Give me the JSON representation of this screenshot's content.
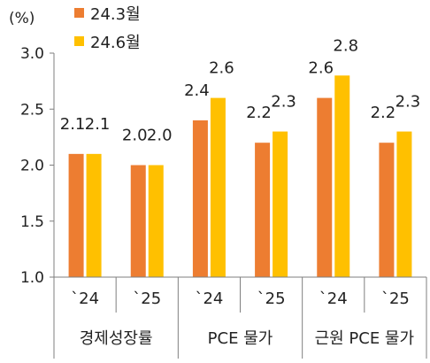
{
  "chart_data": {
    "type": "bar",
    "unit_label": "(%)",
    "ylim": [
      1.0,
      3.0
    ],
    "yticks": [
      "1.0",
      "1.5",
      "2.0",
      "2.5",
      "3.0"
    ],
    "ytick_values": [
      1.0,
      1.5,
      2.0,
      2.5,
      3.0
    ],
    "categories": [
      "`24",
      "`25",
      "`24",
      "`25",
      "`24",
      "`25"
    ],
    "groups": [
      "경제성장률",
      "PCE 물가",
      "근원 PCE 물가"
    ],
    "series": [
      {
        "name": "24.3월",
        "color": "#ED7D31",
        "values": [
          2.1,
          2.0,
          2.4,
          2.2,
          2.6,
          2.2
        ],
        "labels": [
          "2.1",
          "2.0",
          "2.4",
          "2.2",
          "2.6",
          "2.2"
        ]
      },
      {
        "name": "24.6월",
        "color": "#FFC000",
        "values": [
          2.1,
          2.0,
          2.6,
          2.3,
          2.8,
          2.3
        ],
        "labels": [
          "2.1",
          "2.0",
          "2.6",
          "2.3",
          "2.8",
          "2.3"
        ]
      }
    ],
    "legend_position": "top-left",
    "grid": false
  }
}
